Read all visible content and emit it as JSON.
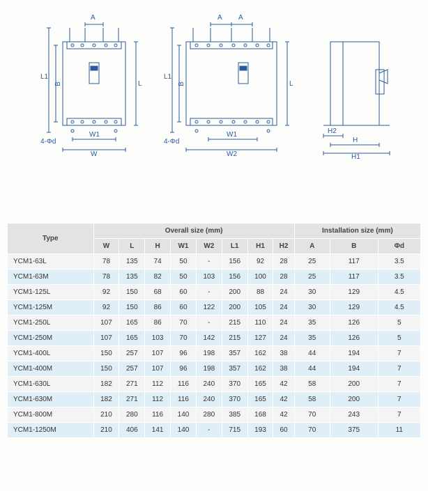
{
  "diagrams": {
    "stroke": "#2a5a9e",
    "stroke_width": 1,
    "left": {
      "labels": {
        "A": "A",
        "L1": "L1",
        "B": "B",
        "L": "L",
        "W1": "W1",
        "W": "W",
        "phi": "4-Φd"
      }
    },
    "mid": {
      "labels": {
        "A": "A",
        "L1": "L1",
        "B": "B",
        "L": "L",
        "W1": "W1",
        "W2": "W2",
        "phi": "4-Φd"
      }
    },
    "right": {
      "labels": {
        "H2": "H2",
        "H": "H",
        "H1": "H1"
      }
    }
  },
  "table": {
    "header_bg": "#e3e3e3",
    "row_odd_bg": "#f4f4f4",
    "row_even_bg": "#e0eef7",
    "border_color": "#ffffff",
    "font_size": 10,
    "groups": {
      "type": "Type",
      "overall": "Overall size (mm)",
      "install": "Installation size (mm)"
    },
    "columns": [
      "W",
      "L",
      "H",
      "W1",
      "W2",
      "L1",
      "H1",
      "H2",
      "A",
      "B",
      "Φd"
    ],
    "rows": [
      {
        "type": "YCM1-63L",
        "W": "78",
        "L": "135",
        "H": "74",
        "W1": "50",
        "W2": "-",
        "L1": "156",
        "H1": "92",
        "H2": "28",
        "A": "25",
        "B": "117",
        "phi": "3.5"
      },
      {
        "type": "YCM1-63M",
        "W": "78",
        "L": "135",
        "H": "82",
        "W1": "50",
        "W2": "103",
        "L1": "156",
        "H1": "100",
        "H2": "28",
        "A": "25",
        "B": "117",
        "phi": "3.5"
      },
      {
        "type": "YCM1-125L",
        "W": "92",
        "L": "150",
        "H": "68",
        "W1": "60",
        "W2": "-",
        "L1": "200",
        "H1": "88",
        "H2": "24",
        "A": "30",
        "B": "129",
        "phi": "4.5"
      },
      {
        "type": "YCM1-125M",
        "W": "92",
        "L": "150",
        "H": "86",
        "W1": "60",
        "W2": "122",
        "L1": "200",
        "H1": "105",
        "H2": "24",
        "A": "30",
        "B": "129",
        "phi": "4.5"
      },
      {
        "type": "YCM1-250L",
        "W": "107",
        "L": "165",
        "H": "86",
        "W1": "70",
        "W2": "-",
        "L1": "215",
        "H1": "110",
        "H2": "24",
        "A": "35",
        "B": "126",
        "phi": "5"
      },
      {
        "type": "YCM1-250M",
        "W": "107",
        "L": "165",
        "H": "103",
        "W1": "70",
        "W2": "142",
        "L1": "215",
        "H1": "127",
        "H2": "24",
        "A": "35",
        "B": "126",
        "phi": "5"
      },
      {
        "type": "YCM1-400L",
        "W": "150",
        "L": "257",
        "H": "107",
        "W1": "96",
        "W2": "198",
        "L1": "357",
        "H1": "162",
        "H2": "38",
        "A": "44",
        "B": "194",
        "phi": "7"
      },
      {
        "type": "YCM1-400M",
        "W": "150",
        "L": "257",
        "H": "107",
        "W1": "96",
        "W2": "198",
        "L1": "357",
        "H1": "162",
        "H2": "38",
        "A": "44",
        "B": "194",
        "phi": "7"
      },
      {
        "type": "YCM1-630L",
        "W": "182",
        "L": "271",
        "H": "112",
        "W1": "116",
        "W2": "240",
        "L1": "370",
        "H1": "165",
        "H2": "42",
        "A": "58",
        "B": "200",
        "phi": "7"
      },
      {
        "type": "YCM1-630M",
        "W": "182",
        "L": "271",
        "H": "112",
        "W1": "116",
        "W2": "240",
        "L1": "370",
        "H1": "165",
        "H2": "42",
        "A": "58",
        "B": "200",
        "phi": "7"
      },
      {
        "type": "YCM1-800M",
        "W": "210",
        "L": "280",
        "H": "116",
        "W1": "140",
        "W2": "280",
        "L1": "385",
        "H1": "168",
        "H2": "42",
        "A": "70",
        "B": "243",
        "phi": "7"
      },
      {
        "type": "YCM1-1250M",
        "W": "210",
        "L": "406",
        "H": "141",
        "W1": "140",
        "W2": "-",
        "L1": "715",
        "H1": "193",
        "H2": "60",
        "A": "70",
        "B": "375",
        "phi": "11"
      }
    ]
  }
}
